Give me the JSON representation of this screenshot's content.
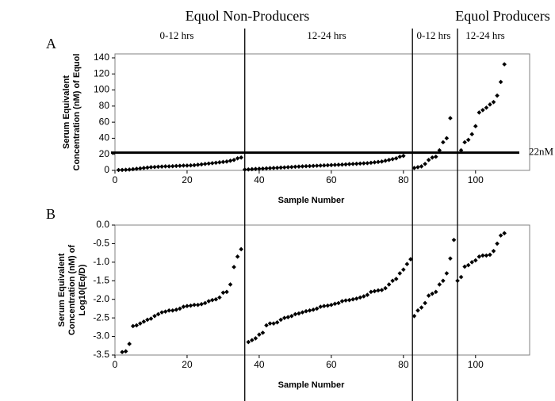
{
  "headers": {
    "groups": [
      "Equol Non-Producers",
      "Equol Producers"
    ],
    "periods": [
      "0-12 hrs",
      "12-24 hrs",
      "0-12 hrs",
      "12-24 hrs"
    ]
  },
  "chart_data": [
    {
      "type": "scatter",
      "panel": "A",
      "ylabel": [
        "Serum Equivalent",
        "Concentration (nM) of Equol"
      ],
      "xlabel": "Sample Number",
      "xlim": [
        0,
        115
      ],
      "xticks": [
        0,
        20,
        40,
        60,
        80,
        100
      ],
      "ylim": [
        0,
        140
      ],
      "yticks": [
        0,
        20,
        40,
        60,
        80,
        100,
        120,
        140
      ],
      "threshold": {
        "value": 22,
        "label": "22nM"
      },
      "dividers": [
        36,
        82.5,
        95
      ],
      "series": [
        {
          "color": "#000000",
          "x": [
            1,
            2,
            3,
            4,
            5,
            6,
            7,
            8,
            9,
            10,
            11,
            12,
            13,
            14,
            15,
            16,
            17,
            18,
            19,
            20,
            21,
            22,
            23,
            24,
            25,
            26,
            27,
            28,
            29,
            30,
            31,
            32,
            33,
            34,
            35
          ],
          "values": [
            0.5,
            0.6,
            0.8,
            1,
            1.5,
            2,
            2.5,
            3,
            3.5,
            4,
            4.2,
            4.5,
            4.7,
            5,
            5,
            5.2,
            5.5,
            5.7,
            6,
            6,
            6.2,
            6.5,
            7,
            7.5,
            8,
            8.5,
            9,
            9.5,
            10,
            10.5,
            11,
            12,
            13,
            15,
            16
          ]
        },
        {
          "color": "#000000",
          "x": [
            36,
            37,
            38,
            39,
            40,
            41,
            42,
            43,
            44,
            45,
            46,
            47,
            48,
            49,
            50,
            51,
            52,
            53,
            54,
            55,
            56,
            57,
            58,
            59,
            60,
            61,
            62,
            63,
            64,
            65,
            66,
            67,
            68,
            69,
            70,
            71,
            72,
            73,
            74,
            75,
            76,
            77,
            78,
            79,
            80
          ],
          "values": [
            1,
            1.2,
            1.5,
            1.8,
            2,
            2.2,
            2.5,
            2.8,
            3,
            3.2,
            3.5,
            3.7,
            4,
            4.2,
            4.5,
            4.7,
            5,
            5.2,
            5.4,
            5.6,
            5.8,
            6,
            6.2,
            6.4,
            6.6,
            6.8,
            7,
            7.2,
            7.5,
            7.8,
            8,
            8.2,
            8.5,
            8.8,
            9,
            9.5,
            10,
            10.5,
            11,
            12,
            13,
            14,
            15,
            17,
            18
          ]
        },
        {
          "color": "#000000",
          "x": [
            83,
            84,
            85,
            86,
            87,
            88,
            89,
            90,
            91,
            92,
            93
          ],
          "values": [
            3,
            4,
            5,
            8,
            13,
            16,
            17,
            25,
            35,
            40,
            65
          ]
        },
        {
          "color": "#000000",
          "x": [
            96,
            97,
            98,
            99,
            100,
            101,
            102,
            103,
            104,
            105,
            106,
            107,
            108
          ],
          "values": [
            25,
            35,
            38,
            45,
            55,
            72,
            75,
            78,
            82,
            85,
            93,
            110,
            132
          ]
        }
      ]
    },
    {
      "type": "scatter",
      "panel": "B",
      "ylabel": [
        "Serum Equivalent",
        "Concentration (nM) of",
        "Log10(Eq/D)"
      ],
      "xlabel": "Sample Number",
      "xlim": [
        0,
        115
      ],
      "xticks": [
        0,
        20,
        40,
        60,
        80,
        100
      ],
      "ylim": [
        -3.5,
        0
      ],
      "yticks": [
        {
          "value": 0,
          "label": "0.0"
        },
        -0.5,
        {
          "value": -1,
          "label": "-1.0"
        },
        -1.5,
        {
          "value": -2,
          "label": "-2.0"
        },
        -2.5,
        {
          "value": -3,
          "label": "-3.0"
        },
        -3.5
      ],
      "series": [
        {
          "color": "#000000",
          "x": [
            2,
            3,
            4,
            5,
            6,
            7,
            8,
            9,
            10,
            11,
            12,
            13,
            14,
            15,
            16,
            17,
            18,
            19,
            20,
            21,
            22,
            23,
            24,
            25,
            26,
            27,
            28,
            29,
            30,
            31,
            32,
            33,
            34,
            35
          ],
          "values": [
            -3.42,
            -3.4,
            -3.2,
            -2.72,
            -2.7,
            -2.65,
            -2.6,
            -2.55,
            -2.52,
            -2.45,
            -2.4,
            -2.35,
            -2.33,
            -2.3,
            -2.3,
            -2.28,
            -2.25,
            -2.2,
            -2.18,
            -2.17,
            -2.15,
            -2.15,
            -2.13,
            -2.1,
            -2.05,
            -2.02,
            -2,
            -1.95,
            -1.82,
            -1.8,
            -1.6,
            -1.13,
            -0.85,
            -0.65
          ]
        },
        {
          "color": "#000000",
          "x": [
            37,
            38,
            39,
            40,
            41,
            42,
            43,
            44,
            45,
            46,
            47,
            48,
            49,
            50,
            51,
            52,
            53,
            54,
            55,
            56,
            57,
            58,
            59,
            60,
            61,
            62,
            63,
            64,
            65,
            66,
            67,
            68,
            69,
            70,
            71,
            72,
            73,
            74,
            75,
            76,
            77,
            78,
            79,
            80,
            81,
            82
          ],
          "values": [
            -3.15,
            -3.1,
            -3.05,
            -2.95,
            -2.9,
            -2.7,
            -2.65,
            -2.65,
            -2.62,
            -2.55,
            -2.5,
            -2.48,
            -2.45,
            -2.4,
            -2.38,
            -2.35,
            -2.32,
            -2.3,
            -2.28,
            -2.25,
            -2.2,
            -2.18,
            -2.17,
            -2.15,
            -2.12,
            -2.1,
            -2.05,
            -2.03,
            -2.02,
            -2,
            -1.98,
            -1.95,
            -1.92,
            -1.88,
            -1.8,
            -1.78,
            -1.76,
            -1.75,
            -1.7,
            -1.6,
            -1.5,
            -1.45,
            -1.3,
            -1.2,
            -1.05,
            -0.92
          ]
        },
        {
          "color": "#000000",
          "x": [
            83,
            84,
            85,
            86,
            87,
            88,
            89,
            90,
            91,
            92,
            93,
            94
          ],
          "values": [
            -2.45,
            -2.3,
            -2.22,
            -2.1,
            -1.9,
            -1.85,
            -1.8,
            -1.6,
            -1.5,
            -1.3,
            -0.9,
            -0.4
          ]
        },
        {
          "color": "#000000",
          "x": [
            95,
            96,
            97,
            98,
            99,
            100,
            101,
            102,
            103,
            104,
            105,
            106,
            107,
            108
          ],
          "values": [
            -1.5,
            -1.4,
            -1.12,
            -1.08,
            -1,
            -0.95,
            -0.85,
            -0.82,
            -0.82,
            -0.8,
            -0.7,
            -0.5,
            -0.28,
            -0.22
          ]
        }
      ]
    }
  ]
}
